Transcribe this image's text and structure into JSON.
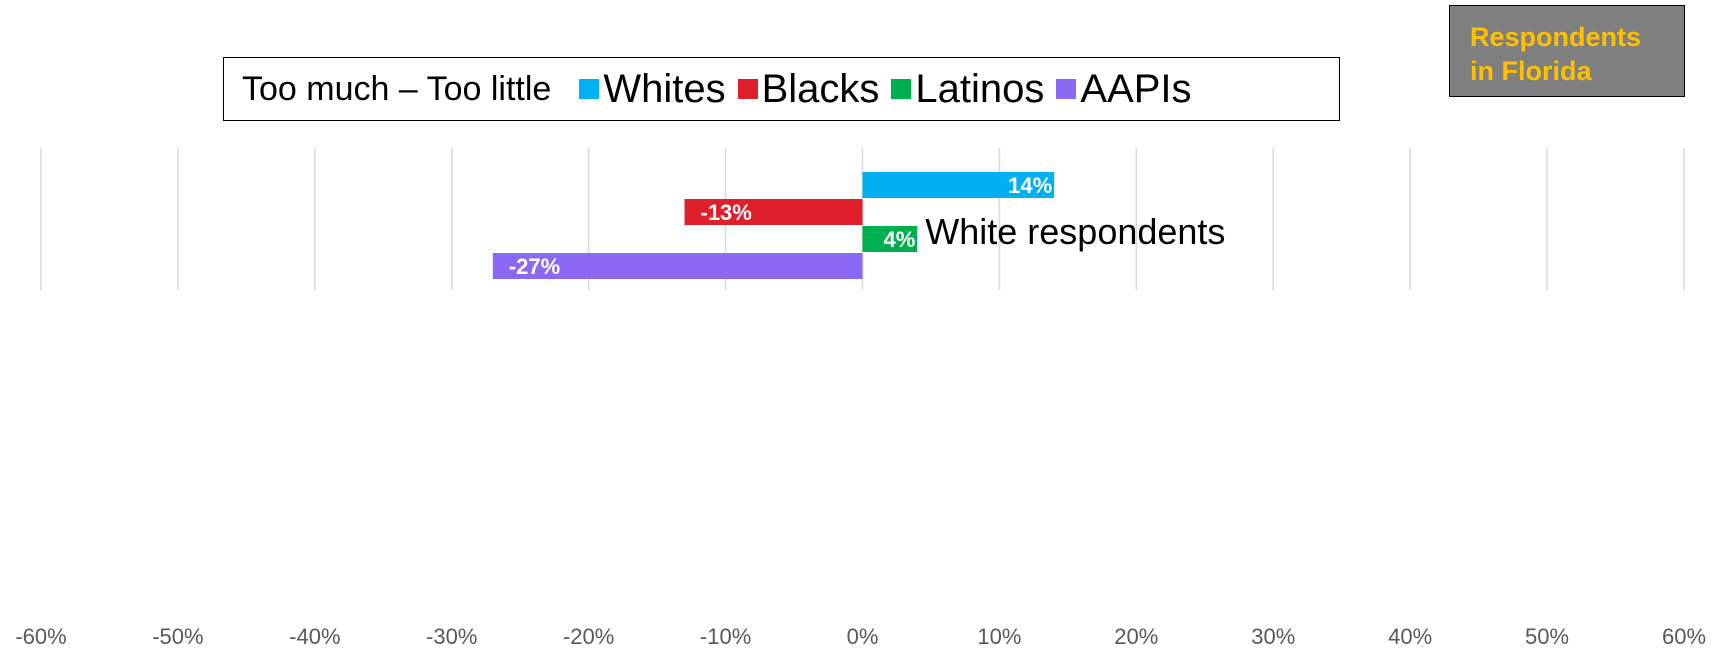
{
  "badge": {
    "line1": "Respondents",
    "line2": "in Florida"
  },
  "legend": {
    "title": "Too much – Too little",
    "items": [
      {
        "label": "Whites",
        "color": "#00b0f0"
      },
      {
        "label": "Blacks",
        "color": "#e01f2d"
      },
      {
        "label": "Latinos",
        "color": "#00b050"
      },
      {
        "label": "AAPIs",
        "color": "#8b69f4"
      }
    ]
  },
  "chart_data": {
    "type": "bar",
    "orientation": "horizontal",
    "category": "White respondents",
    "series": [
      {
        "name": "Whites",
        "value": 14,
        "label": "14%",
        "color": "#00b0f0"
      },
      {
        "name": "Blacks",
        "value": -13,
        "label": "-13%",
        "color": "#e01f2d"
      },
      {
        "name": "Latinos",
        "value": 4,
        "label": "4%",
        "color": "#00b050"
      },
      {
        "name": "AAPIs",
        "value": -27,
        "label": "-27%",
        "color": "#8b69f4"
      }
    ],
    "xlim": [
      -60,
      60
    ],
    "xticks": [
      -60,
      -50,
      -40,
      -30,
      -20,
      -10,
      0,
      10,
      20,
      30,
      40,
      50,
      60
    ],
    "xtick_labels": [
      "-60%",
      "-50%",
      "-40%",
      "-30%",
      "-20%",
      "-10%",
      "0%",
      "10%",
      "20%",
      "30%",
      "40%",
      "50%",
      "60%"
    ],
    "grid": true,
    "legend_position": "top"
  }
}
